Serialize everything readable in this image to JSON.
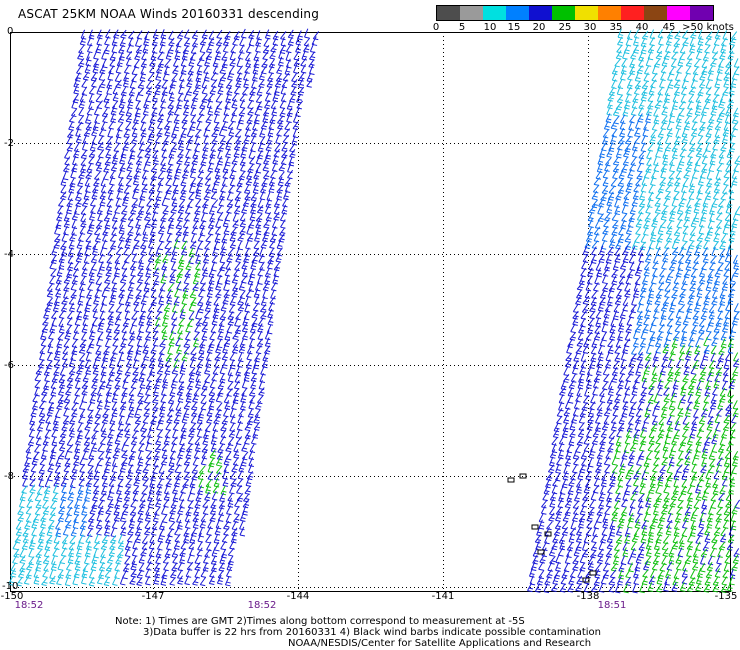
{
  "title": "ASCAT 25KM NOAA Winds 20160331 descending",
  "legend": {
    "labels": [
      "0",
      "5",
      "10",
      "15",
      "20",
      "25",
      "30",
      "35",
      "40",
      "45",
      ">50 knots"
    ],
    "colors": [
      "#4d4d4d",
      "#9a9a9a",
      "#00e0e0",
      "#0080ff",
      "#1010d0",
      "#00c000",
      "#f0e000",
      "#ff8000",
      "#ff2020",
      "#8b4513",
      "#ff00ff",
      "#7000b0"
    ]
  },
  "axes": {
    "lat_labels": [
      "0",
      "-2",
      "-4",
      "-6",
      "-8",
      "-10"
    ],
    "lon_labels": [
      "-150",
      "-147",
      "-144",
      "-141",
      "-138",
      "-135"
    ]
  },
  "times": [
    "18:52",
    "18:52",
    "18:51"
  ],
  "notes": {
    "line1": "Note: 1) Times are GMT 2)Times along bottom correspond to measurement at -5S",
    "line2": "3)Data buffer is 22 hrs from 20160331 4) Black wind barbs indicate possible contamination",
    "line3": "NOAA/NESDIS/Center for Satellite Applications and Research"
  }
}
